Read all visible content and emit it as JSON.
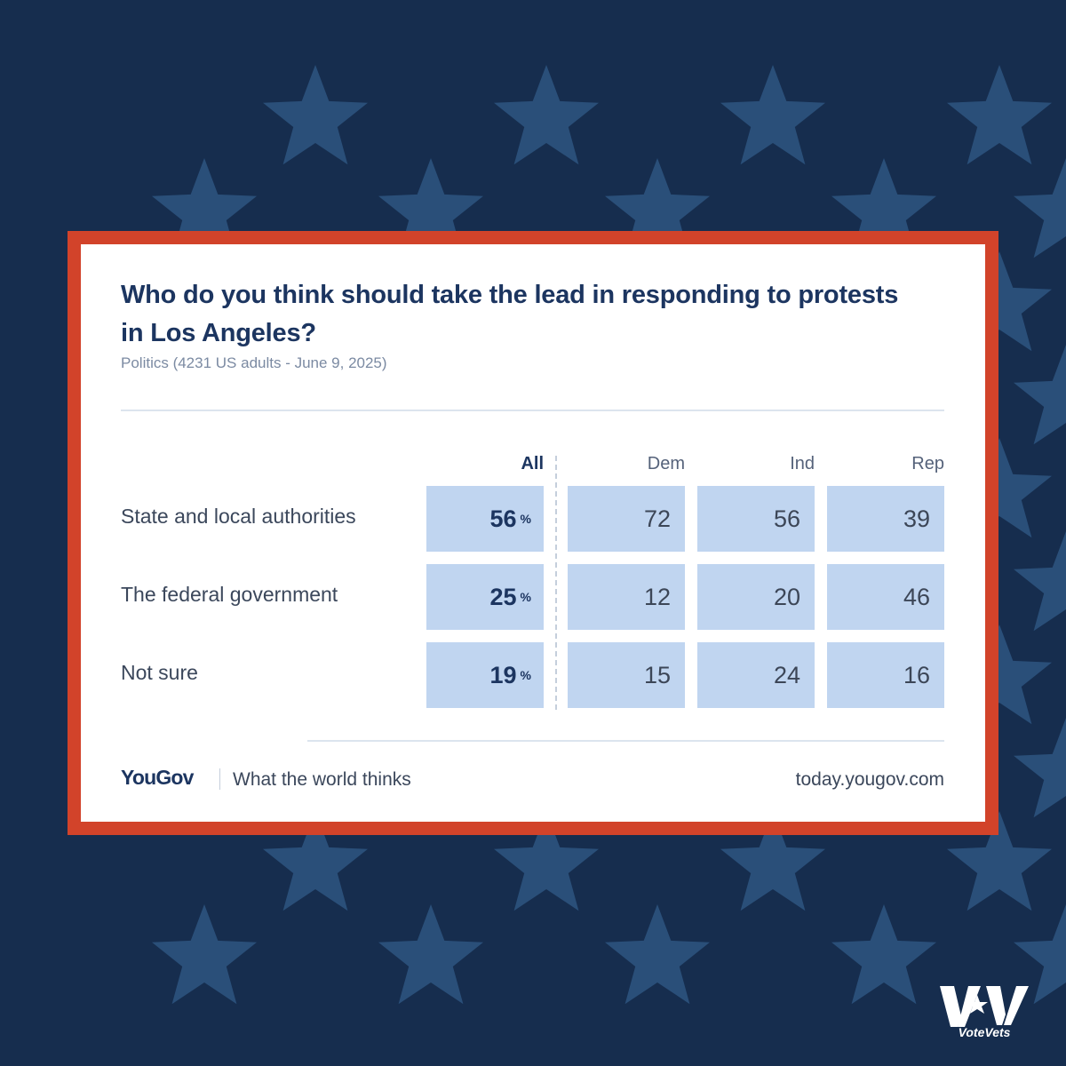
{
  "background": {
    "color": "#162d4e",
    "star_color": "#2a4f79",
    "star_icon": "star-icon"
  },
  "card": {
    "border_color": "#d2432a",
    "cell_color": "#c0d5f0"
  },
  "chart_data": {
    "type": "table",
    "title": "Who do you think should take the lead in responding to protests in Los Angeles?",
    "subtitle": "Politics (4231 US adults - June 9, 2025)",
    "columns": [
      "All",
      "Dem",
      "Ind",
      "Rep"
    ],
    "rows": [
      {
        "label": "State and local authorities",
        "values": [
          56,
          72,
          56,
          39
        ]
      },
      {
        "label": "The federal government",
        "values": [
          25,
          12,
          20,
          46
        ]
      },
      {
        "label": "Not sure",
        "values": [
          19,
          15,
          24,
          16
        ]
      }
    ],
    "unit": "%"
  },
  "footer": {
    "logo": "YouGov",
    "tagline": "What the world thinks",
    "site": "today.yougov.com"
  },
  "brand": {
    "name": "VoteVets",
    "icon": "votevets-logo-icon"
  }
}
